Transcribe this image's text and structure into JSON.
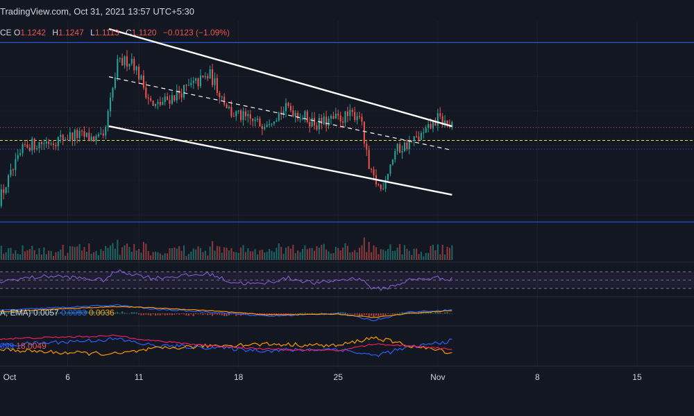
{
  "header": {
    "watermark": "TradingView.com, Oct 31, 2021 13:57 UTC+5:30",
    "symbol_fragment": "CE",
    "ohlc": {
      "o_label": "O",
      "o": "1.1242",
      "h_label": "H",
      "h": "1.1247",
      "l_label": "L",
      "l": "1.1113",
      "c_label": "C",
      "c": "1.1120",
      "change": "−0.0123 (−1.09%)"
    }
  },
  "indicators": {
    "macd": {
      "prefix": "A, EMA)",
      "v1": "0.0057",
      "v2": "0.0093",
      "v3": "0.0036"
    },
    "dmi": {
      "v1": "099",
      "v2": "18.0049"
    }
  },
  "chart_data": {
    "type": "candlestick",
    "x_axis": {
      "tick_labels": [
        "Oct",
        "6",
        "11",
        "18",
        "25",
        "Nov",
        "8",
        "15"
      ],
      "tick_days": [
        1,
        6,
        11,
        18,
        25,
        32,
        39,
        46
      ]
    },
    "x_range_days": [
      1,
      50
    ],
    "y_range": [
      0.99,
      1.21
    ],
    "horizontal_levels": [
      {
        "price": 1.19,
        "style": "solid",
        "color": "#2962ff"
      },
      {
        "price": 1.025,
        "style": "solid",
        "color": "#2962ff"
      },
      {
        "price": 1.112,
        "style": "dotted",
        "color": "#ef5350"
      },
      {
        "price": 1.1,
        "style": "dashed",
        "color": "#f7e35a"
      },
      {
        "price": 1.092,
        "style": "dotted",
        "color": "#2962ff"
      }
    ],
    "channel_lines": [
      {
        "from": [
          8.9,
          1.2025
        ],
        "to": [
          33.0,
          1.113
        ],
        "style": "solid"
      },
      {
        "from": [
          8.9,
          1.113
        ],
        "to": [
          33.0,
          1.05
        ],
        "style": "solid"
      },
      {
        "from": [
          8.9,
          1.1585
        ],
        "to": [
          33.0,
          1.091
        ],
        "style": "dashed"
      }
    ],
    "colors": {
      "up": "#26a69a",
      "down": "#ef5350",
      "background": "#131722"
    },
    "candles_start_day": 1,
    "candles_per_day": 6,
    "close_path": [
      [
        1.0,
        1.041
      ],
      [
        3.0,
        1.095
      ],
      [
        5.0,
        1.1
      ],
      [
        6.5,
        1.105
      ],
      [
        8.5,
        1.1
      ],
      [
        9.5,
        1.17
      ],
      [
        10.5,
        1.175
      ],
      [
        12.0,
        1.13
      ],
      [
        14.0,
        1.145
      ],
      [
        16.0,
        1.16
      ],
      [
        17.5,
        1.125
      ],
      [
        19.5,
        1.115
      ],
      [
        21.5,
        1.13
      ],
      [
        23.5,
        1.115
      ],
      [
        25.0,
        1.12
      ],
      [
        26.5,
        1.125
      ],
      [
        27.2,
        1.07
      ],
      [
        28.0,
        1.055
      ],
      [
        29.0,
        1.09
      ],
      [
        31.0,
        1.105
      ],
      [
        32.0,
        1.12
      ],
      [
        33.0,
        1.112
      ]
    ],
    "rsi_path": [
      [
        1.0,
        45
      ],
      [
        3.0,
        55
      ],
      [
        5.0,
        60
      ],
      [
        8.5,
        50
      ],
      [
        9.5,
        72
      ],
      [
        12.0,
        55
      ],
      [
        14.0,
        60
      ],
      [
        16.0,
        65
      ],
      [
        17.5,
        45
      ],
      [
        19.5,
        40
      ],
      [
        21.5,
        55
      ],
      [
        23.5,
        42
      ],
      [
        25.0,
        50
      ],
      [
        26.5,
        55
      ],
      [
        27.5,
        28
      ],
      [
        28.5,
        32
      ],
      [
        30.0,
        50
      ],
      [
        32.0,
        56
      ],
      [
        33.0,
        52
      ]
    ],
    "macd_path": [
      [
        1.0,
        0.004
      ],
      [
        5.0,
        0.008
      ],
      [
        9.5,
        0.012
      ],
      [
        12.0,
        0.006
      ],
      [
        16.0,
        0.002
      ],
      [
        20.0,
        -0.004
      ],
      [
        25.0,
        0.0
      ],
      [
        27.5,
        -0.01
      ],
      [
        30.0,
        0.002
      ],
      [
        33.0,
        0.005
      ]
    ],
    "signal_path": [
      [
        1.0,
        0.002
      ],
      [
        5.0,
        0.006
      ],
      [
        9.5,
        0.01
      ],
      [
        12.0,
        0.008
      ],
      [
        16.0,
        0.004
      ],
      [
        20.0,
        -0.002
      ],
      [
        25.0,
        -0.001
      ],
      [
        27.5,
        -0.006
      ],
      [
        30.0,
        0.0
      ],
      [
        33.0,
        0.004
      ]
    ],
    "dmi_plus_path": [
      [
        1.0,
        22
      ],
      [
        5.0,
        26
      ],
      [
        9.5,
        30
      ],
      [
        12.0,
        22
      ],
      [
        16.0,
        20
      ],
      [
        20.0,
        16
      ],
      [
        25.0,
        18
      ],
      [
        27.5,
        10
      ],
      [
        30.0,
        20
      ],
      [
        33.0,
        28
      ]
    ],
    "dmi_minus_path": [
      [
        1.0,
        18
      ],
      [
        5.0,
        14
      ],
      [
        9.5,
        12
      ],
      [
        12.0,
        18
      ],
      [
        16.0,
        22
      ],
      [
        20.0,
        24
      ],
      [
        25.0,
        22
      ],
      [
        27.5,
        32
      ],
      [
        30.0,
        22
      ],
      [
        33.0,
        14
      ]
    ],
    "adx_path": [
      [
        1.0,
        30
      ],
      [
        5.0,
        32
      ],
      [
        9.5,
        34
      ],
      [
        12.0,
        28
      ],
      [
        16.0,
        22
      ],
      [
        20.0,
        18
      ],
      [
        25.0,
        16
      ],
      [
        27.5,
        24
      ],
      [
        30.0,
        22
      ],
      [
        33.0,
        18
      ]
    ]
  }
}
